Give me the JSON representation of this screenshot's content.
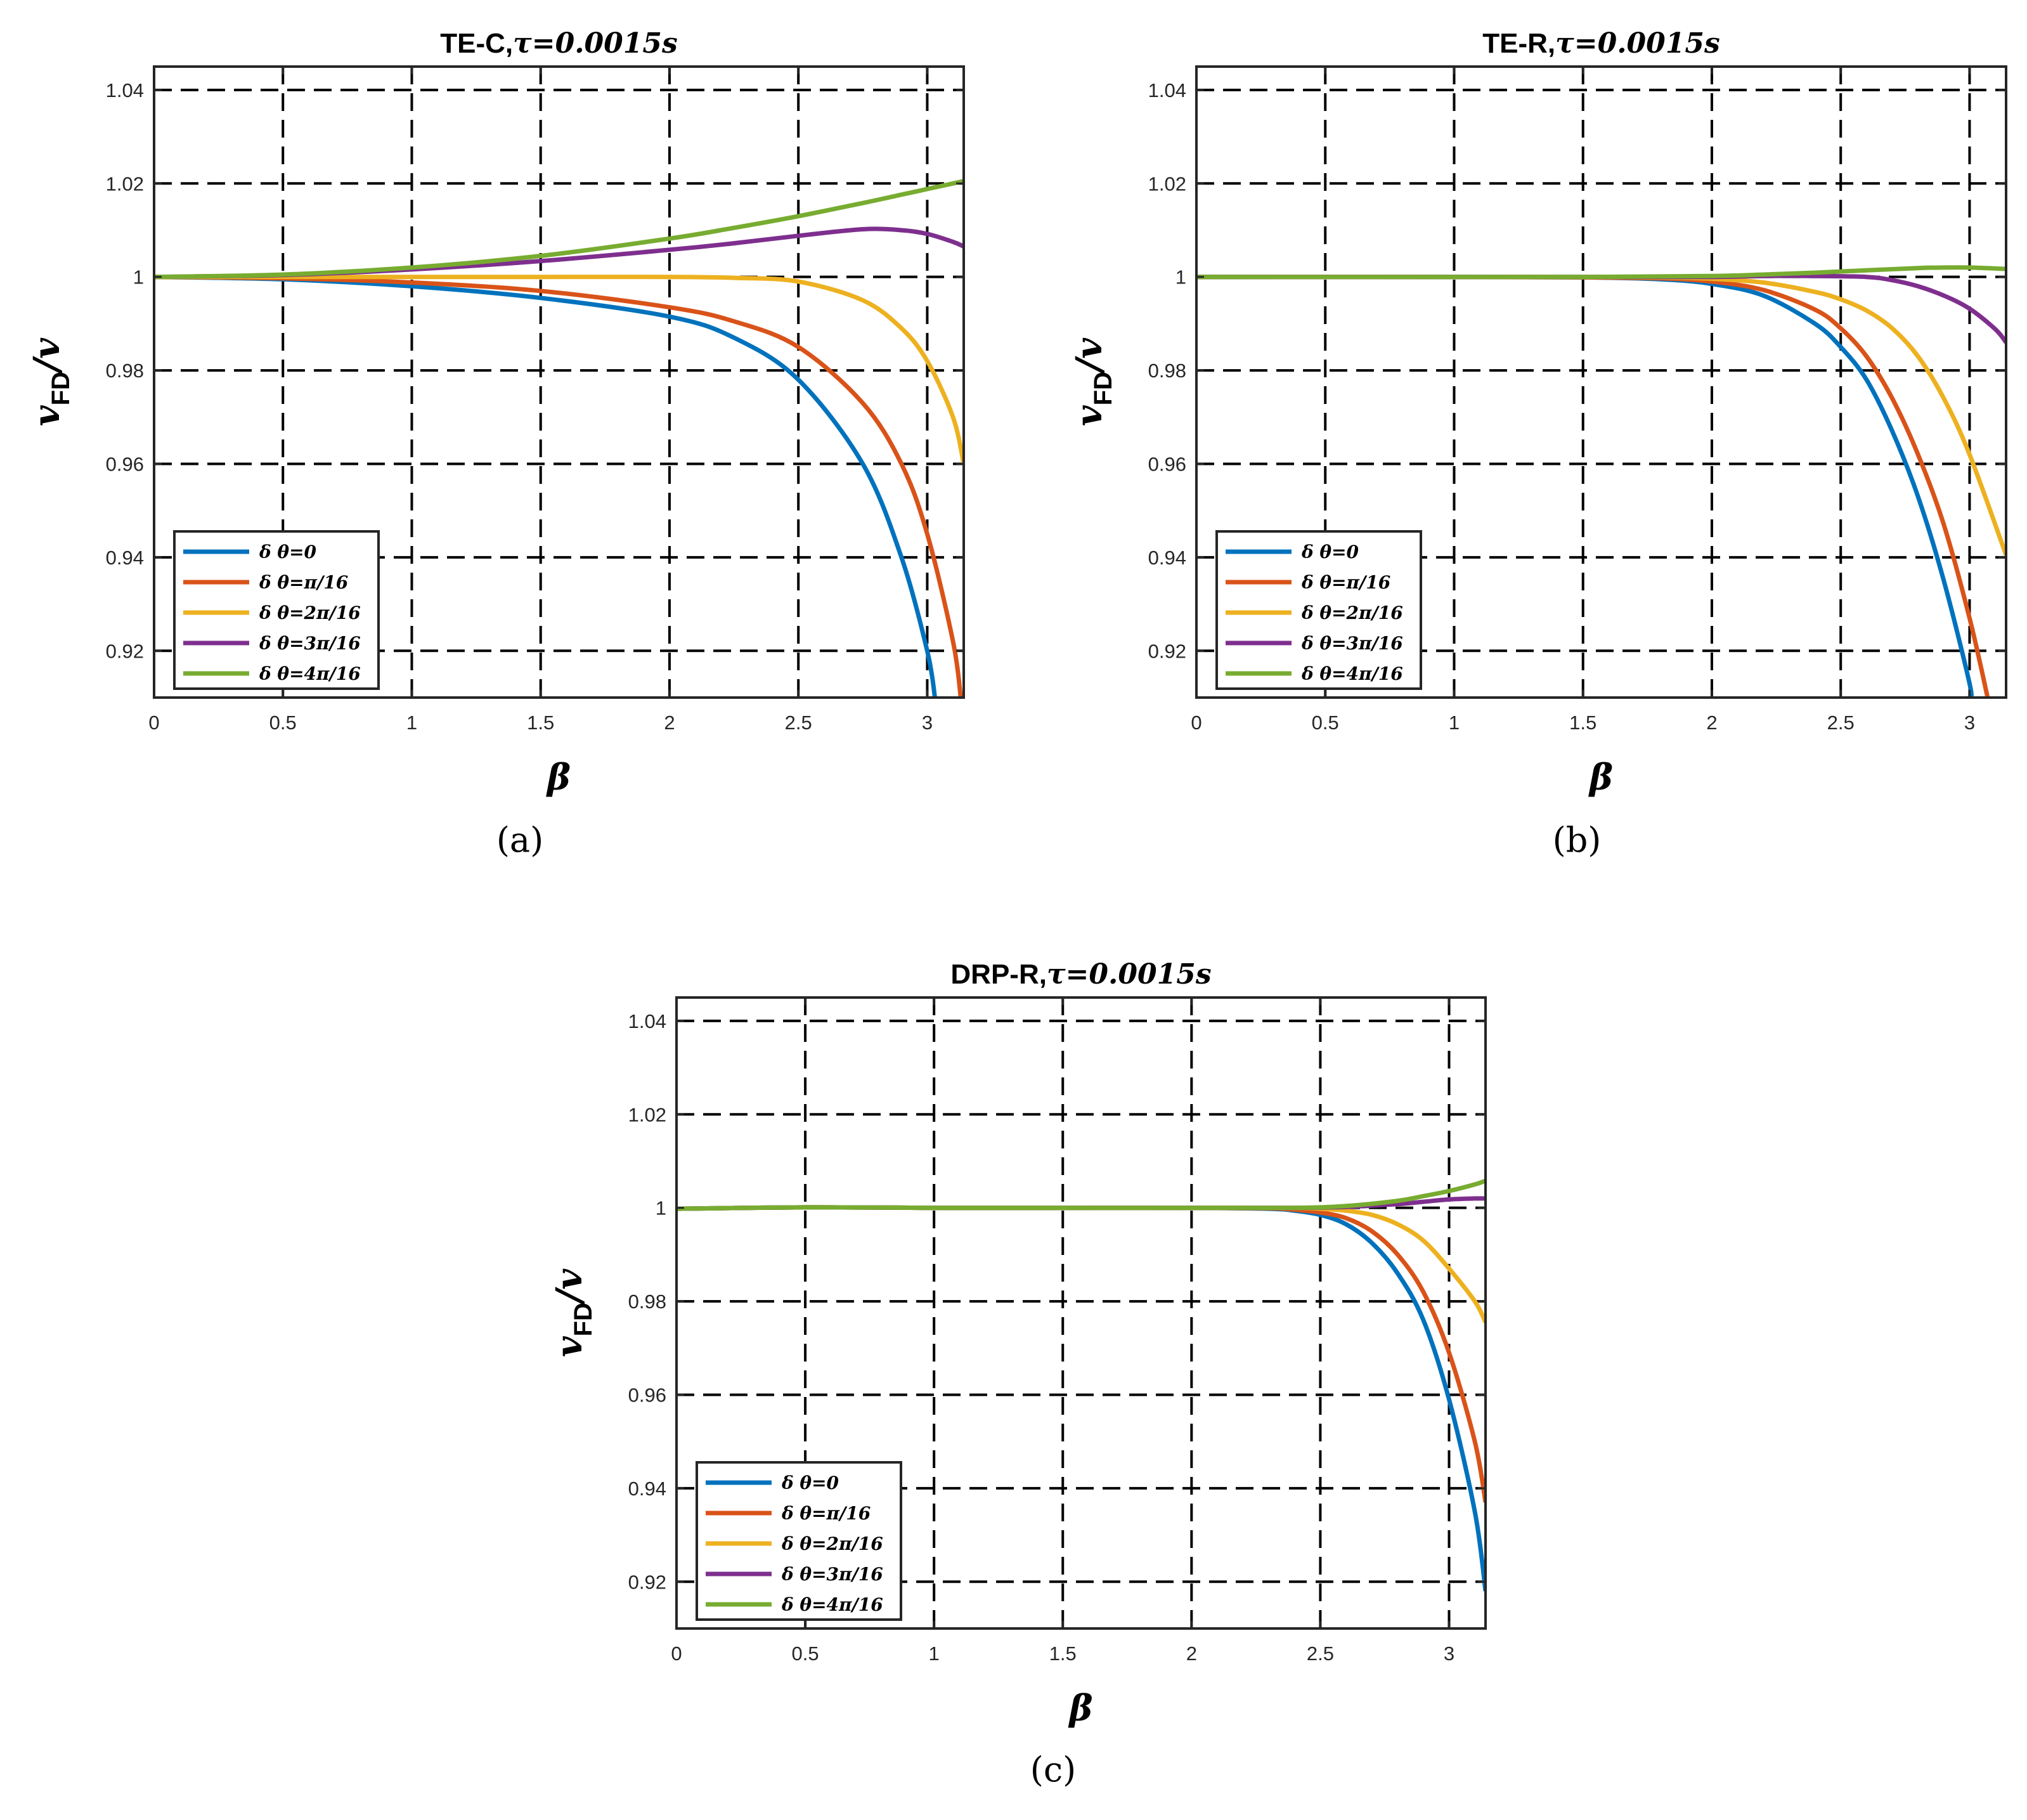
{
  "chart_data": [
    {
      "type": "line",
      "title": "TE-C,  τ=0.0015s",
      "title_main": "TE-C,",
      "title_param": "τ=0.0015s",
      "caption": "(a)",
      "xlabel": "β",
      "ylabel_main": "v",
      "ylabel_sub": "FD",
      "ylabel_tail": "/v",
      "xlim": [
        0,
        3.1416
      ],
      "ylim": [
        0.91,
        1.045
      ],
      "xticks": [
        0,
        0.5,
        1,
        1.5,
        2,
        2.5,
        3
      ],
      "xtick_labels": [
        "0",
        "0.5",
        "1",
        "1.5",
        "2",
        "2.5",
        "3"
      ],
      "yticks": [
        0.92,
        0.94,
        0.96,
        0.98,
        1,
        1.02,
        1.04
      ],
      "ytick_labels": [
        "0.92",
        "0.94",
        "0.96",
        "0.98",
        "1",
        "1.02",
        "1.04"
      ],
      "grid": true,
      "legend_position": "bottom-left",
      "series": [
        {
          "name": "δ  θ=0",
          "color": "#0072BD",
          "x": [
            0,
            0.5,
            1,
            1.5,
            2,
            2.25,
            2.5,
            2.75,
            2.9,
            3.0,
            3.03
          ],
          "y": [
            1,
            0.9995,
            0.998,
            0.9955,
            0.9915,
            0.987,
            0.978,
            0.96,
            0.94,
            0.92,
            0.91
          ]
        },
        {
          "name": "δ  θ=π/16",
          "color": "#D95319",
          "x": [
            0,
            0.5,
            1,
            1.5,
            2,
            2.25,
            2.5,
            2.75,
            2.9,
            3.0,
            3.1,
            3.13
          ],
          "y": [
            1,
            0.9997,
            0.9988,
            0.997,
            0.9935,
            0.9905,
            0.985,
            0.973,
            0.96,
            0.945,
            0.922,
            0.91
          ]
        },
        {
          "name": "δ  θ=2π/16",
          "color": "#EDB120",
          "x": [
            0,
            0.5,
            1,
            1.5,
            2,
            2.25,
            2.5,
            2.75,
            2.9,
            3.0,
            3.1,
            3.1416
          ],
          "y": [
            1,
            1.0,
            1.0,
            1.0,
            1.0,
            0.9998,
            0.999,
            0.995,
            0.989,
            0.982,
            0.97,
            0.96
          ]
        },
        {
          "name": "δ  θ=3π/16",
          "color": "#7E2F8E",
          "x": [
            0,
            0.5,
            1,
            1.5,
            2,
            2.25,
            2.5,
            2.75,
            2.9,
            3.0,
            3.1,
            3.1416
          ],
          "y": [
            1,
            1.0004,
            1.0016,
            1.0034,
            1.0058,
            1.0072,
            1.0088,
            1.0102,
            1.01,
            1.0092,
            1.0075,
            1.0065
          ]
        },
        {
          "name": "δ  θ=4π/16",
          "color": "#77AC30",
          "x": [
            0,
            0.5,
            1,
            1.5,
            2,
            2.25,
            2.5,
            2.75,
            2.9,
            3.0,
            3.1,
            3.1416
          ],
          "y": [
            1,
            1.0005,
            1.002,
            1.0045,
            1.0082,
            1.0105,
            1.013,
            1.0158,
            1.0176,
            1.0188,
            1.02,
            1.0205
          ]
        }
      ]
    },
    {
      "type": "line",
      "title": "TE-R,  τ=0.0015s",
      "title_main": "TE-R,",
      "title_param": "τ=0.0015s",
      "caption": "(b)",
      "xlabel": "β",
      "ylabel_main": "v",
      "ylabel_sub": "FD",
      "ylabel_tail": "/v",
      "xlim": [
        0,
        3.1416
      ],
      "ylim": [
        0.91,
        1.045
      ],
      "xticks": [
        0,
        0.5,
        1,
        1.5,
        2,
        2.5,
        3
      ],
      "xtick_labels": [
        "0",
        "0.5",
        "1",
        "1.5",
        "2",
        "2.5",
        "3"
      ],
      "yticks": [
        0.92,
        0.94,
        0.96,
        0.98,
        1,
        1.02,
        1.04
      ],
      "ytick_labels": [
        "0.92",
        "0.94",
        "0.96",
        "0.98",
        "1",
        "1.02",
        "1.04"
      ],
      "grid": true,
      "legend_position": "bottom-left",
      "series": [
        {
          "name": "δ  θ=0",
          "color": "#0072BD",
          "x": [
            0,
            1,
            1.5,
            1.8,
            2.0,
            2.2,
            2.4,
            2.5,
            2.6,
            2.7,
            2.8,
            2.9,
            3.0,
            3.0
          ],
          "y": [
            1,
            1,
            0.9999,
            0.9995,
            0.9985,
            0.996,
            0.99,
            0.985,
            0.978,
            0.967,
            0.953,
            0.935,
            0.913,
            0.91
          ]
        },
        {
          "name": "δ  θ=π/16",
          "color": "#D95319",
          "x": [
            0,
            1,
            1.5,
            1.8,
            2.0,
            2.2,
            2.4,
            2.5,
            2.6,
            2.7,
            2.8,
            2.9,
            3.0,
            3.07
          ],
          "y": [
            1,
            1,
            0.9999,
            0.9997,
            0.999,
            0.9972,
            0.993,
            0.989,
            0.983,
            0.974,
            0.962,
            0.947,
            0.927,
            0.91
          ]
        },
        {
          "name": "δ  θ=2π/16",
          "color": "#EDB120",
          "x": [
            0,
            1,
            1.5,
            1.8,
            2.0,
            2.2,
            2.4,
            2.5,
            2.6,
            2.7,
            2.8,
            2.9,
            3.0,
            3.1416
          ],
          "y": [
            1,
            1,
            1.0,
            0.9999,
            0.9996,
            0.9988,
            0.9968,
            0.9952,
            0.9928,
            0.989,
            0.983,
            0.974,
            0.962,
            0.9405
          ]
        },
        {
          "name": "δ  θ=3π/16",
          "color": "#7E2F8E",
          "x": [
            0,
            1,
            1.5,
            2.0,
            2.2,
            2.4,
            2.6,
            2.7,
            2.8,
            2.9,
            3.0,
            3.1,
            3.1416
          ],
          "y": [
            1,
            1,
            1.0,
            1.0,
            1.0002,
            1.0002,
            1.0,
            0.9993,
            0.998,
            0.996,
            0.9932,
            0.9888,
            0.986
          ]
        },
        {
          "name": "δ  θ=4π/16",
          "color": "#77AC30",
          "x": [
            0,
            1,
            1.5,
            2.0,
            2.2,
            2.4,
            2.6,
            2.8,
            2.9,
            3.0,
            3.1,
            3.1416
          ],
          "y": [
            1,
            1,
            1.0,
            1.0002,
            1.0005,
            1.0009,
            1.0014,
            1.0019,
            1.002,
            1.002,
            1.0018,
            1.0017
          ]
        }
      ]
    },
    {
      "type": "line",
      "title": "DRP-R,  τ=0.0015s",
      "title_main": "DRP-R,",
      "title_param": "τ=0.0015s",
      "caption": "(c)",
      "xlabel": "β",
      "ylabel_main": "v",
      "ylabel_sub": "FD",
      "ylabel_tail": "/v",
      "xlim": [
        0,
        3.1416
      ],
      "ylim": [
        0.91,
        1.045
      ],
      "xticks": [
        0,
        0.5,
        1,
        1.5,
        2,
        2.5,
        3
      ],
      "xtick_labels": [
        "0",
        "0.5",
        "1",
        "1.5",
        "2",
        "2.5",
        "3"
      ],
      "yticks": [
        0.92,
        0.94,
        0.96,
        0.98,
        1,
        1.02,
        1.04
      ],
      "ytick_labels": [
        "0.92",
        "0.94",
        "0.96",
        "0.98",
        "1",
        "1.02",
        "1.04"
      ],
      "grid": true,
      "legend_position": "bottom-left",
      "series": [
        {
          "name": "δ  θ=0",
          "color": "#0072BD",
          "x": [
            0,
            0.5,
            1,
            1.5,
            2.0,
            2.3,
            2.4,
            2.5,
            2.6,
            2.7,
            2.8,
            2.9,
            3.0,
            3.1,
            3.1416
          ],
          "y": [
            0.9998,
            1.0001,
            1.0,
            1.0,
            1.0,
            0.9998,
            0.9994,
            0.9985,
            0.9965,
            0.9925,
            0.986,
            0.976,
            0.959,
            0.935,
            0.918
          ]
        },
        {
          "name": "δ  θ=π/16",
          "color": "#D95319",
          "x": [
            0,
            0.5,
            1,
            1.5,
            2.0,
            2.3,
            2.4,
            2.5,
            2.6,
            2.7,
            2.8,
            2.9,
            3.0,
            3.1,
            3.1416
          ],
          "y": [
            0.9998,
            1.0001,
            1.0,
            1.0,
            1.0,
            0.9999,
            0.9996,
            0.999,
            0.9978,
            0.995,
            0.99,
            0.982,
            0.969,
            0.95,
            0.937
          ]
        },
        {
          "name": "δ  θ=2π/16",
          "color": "#EDB120",
          "x": [
            0,
            0.5,
            1,
            1.5,
            2.0,
            2.4,
            2.5,
            2.6,
            2.7,
            2.8,
            2.9,
            3.0,
            3.1,
            3.1416
          ],
          "y": [
            0.9998,
            1.0001,
            1.0,
            1.0,
            1.0,
            1.0,
            0.9998,
            0.9994,
            0.9985,
            0.9965,
            0.993,
            0.987,
            0.98,
            0.9755
          ]
        },
        {
          "name": "δ  θ=3π/16",
          "color": "#7E2F8E",
          "x": [
            0,
            0.5,
            1,
            1.5,
            2.0,
            2.4,
            2.6,
            2.8,
            2.9,
            3.0,
            3.1,
            3.1416
          ],
          "y": [
            0.9998,
            1.0001,
            1.0,
            1.0,
            1.0,
            1.0,
            1.0002,
            1.0008,
            1.0013,
            1.0018,
            1.002,
            1.002
          ]
        },
        {
          "name": "δ  θ=4π/16",
          "color": "#77AC30",
          "x": [
            0,
            0.5,
            1,
            1.5,
            2.0,
            2.4,
            2.6,
            2.8,
            2.9,
            3.0,
            3.1,
            3.1416
          ],
          "y": [
            0.9998,
            1.0001,
            1.0,
            1.0,
            1.0,
            1.0,
            1.0004,
            1.0015,
            1.0025,
            1.0036,
            1.005,
            1.0058
          ]
        }
      ]
    }
  ]
}
